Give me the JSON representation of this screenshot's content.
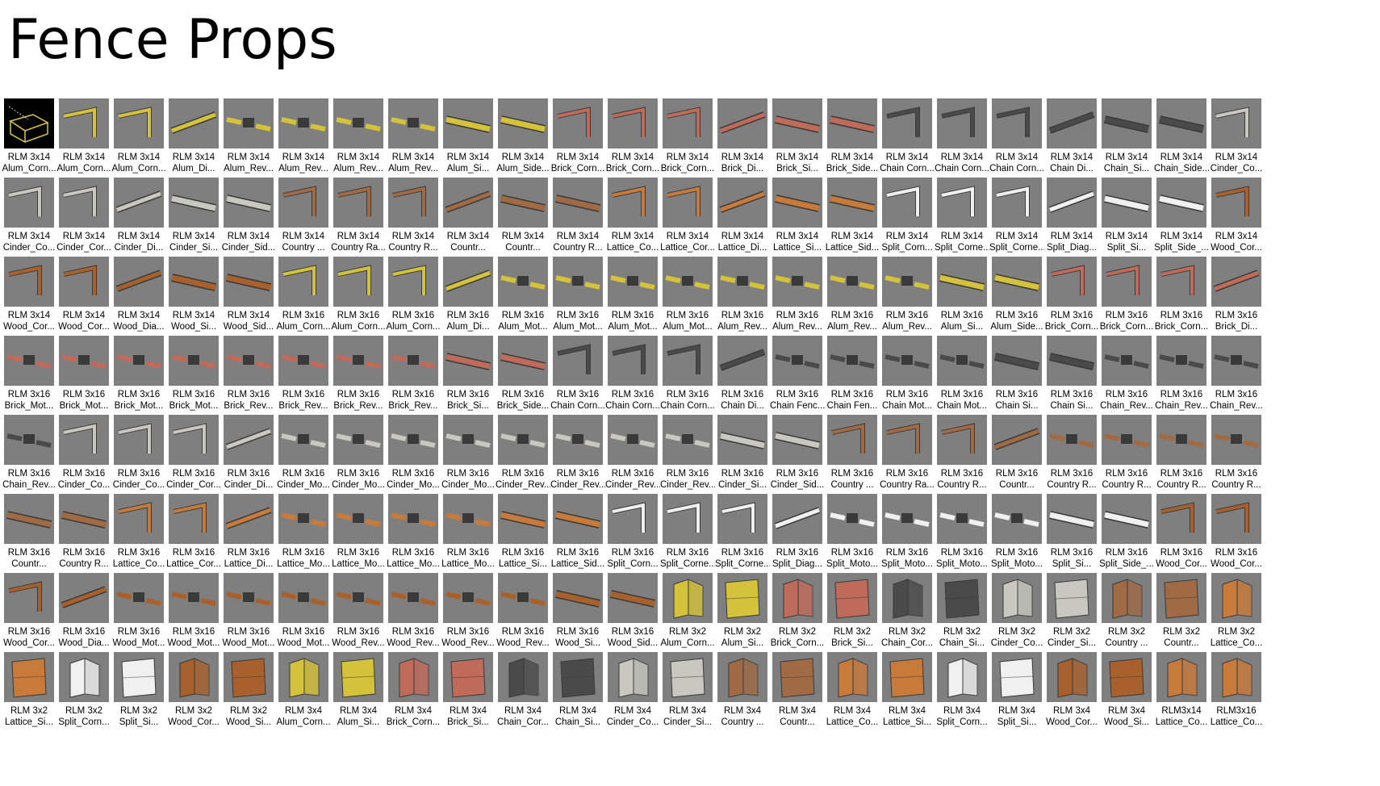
{
  "title": "Fence Props",
  "colors": {
    "background": "#ffffff",
    "thumbnail": "#7f7f7f",
    "alum": "#d4c23a",
    "brick": "#c06a5a",
    "chain": "#4a4a4a",
    "cinder": "#c8c8c0",
    "country": "#a06a45",
    "lattice": "#c87a3a",
    "split": "#f0f0f0",
    "wood": "#a8612c"
  },
  "items": [
    {
      "l1": "RLM 3x14",
      "l2": "Alum_Corn...",
      "icon": "selected-frame-icon"
    },
    {
      "l1": "RLM 3x14",
      "l2": "Alum_Corn...",
      "icon": "corner-fence-icon"
    },
    {
      "l1": "RLM 3x14",
      "l2": "Alum_Corn...",
      "icon": "corner-fence-icon"
    },
    {
      "l1": "RLM 3x14",
      "l2": "Alum_Di...",
      "icon": "diagonal-fence-icon"
    },
    {
      "l1": "RLM 3x14",
      "l2": "Alum_Rev...",
      "icon": "gate-fence-icon"
    },
    {
      "l1": "RLM 3x14",
      "l2": "Alum_Rev...",
      "icon": "gate-fence-icon"
    },
    {
      "l1": "RLM 3x14",
      "l2": "Alum_Rev...",
      "icon": "gate-fence-icon"
    },
    {
      "l1": "RLM 3x14",
      "l2": "Alum_Rev...",
      "icon": "gate-fence-icon"
    },
    {
      "l1": "RLM 3x14",
      "l2": "Alum_Si...",
      "icon": "side-fence-icon"
    },
    {
      "l1": "RLM 3x14",
      "l2": "Alum_Side...",
      "icon": "side-fence-icon"
    },
    {
      "l1": "RLM 3x14",
      "l2": "Brick_Corn...",
      "icon": "corner-fence-icon"
    },
    {
      "l1": "RLM 3x14",
      "l2": "Brick_Corn...",
      "icon": "corner-fence-icon"
    },
    {
      "l1": "RLM 3x14",
      "l2": "Brick_Corn...",
      "icon": "corner-fence-icon"
    },
    {
      "l1": "RLM 3x14",
      "l2": "Brick_Di...",
      "icon": "diagonal-fence-icon"
    },
    {
      "l1": "RLM 3x14",
      "l2": "Brick_Si...",
      "icon": "side-fence-icon"
    },
    {
      "l1": "RLM 3x14",
      "l2": "Brick_Side...",
      "icon": "side-fence-icon"
    },
    {
      "l1": "RLM 3x14",
      "l2": "Chain Corn...",
      "icon": "corner-fence-icon"
    },
    {
      "l1": "RLM 3x14",
      "l2": "Chain Corn...",
      "icon": "corner-fence-icon"
    },
    {
      "l1": "RLM 3x14",
      "l2": "Chain Corn...",
      "icon": "corner-fence-icon"
    },
    {
      "l1": "RLM 3x14",
      "l2": "Chain Di...",
      "icon": "diagonal-fence-icon"
    },
    {
      "l1": "RLM 3x14",
      "l2": "Chain_Si...",
      "icon": "side-fence-icon"
    },
    {
      "l1": "RLM 3x14",
      "l2": "Chain_Side...",
      "icon": "side-fence-icon"
    },
    {
      "l1": "RLM 3x14",
      "l2": "Cinder_Co...",
      "icon": "corner-fence-icon"
    },
    {
      "l1": "RLM 3x14",
      "l2": "Cinder_Co...",
      "icon": "corner-fence-icon"
    },
    {
      "l1": "RLM 3x14",
      "l2": "Cinder_Cor...",
      "icon": "corner-fence-icon"
    },
    {
      "l1": "RLM 3x14",
      "l2": "Cinder_Di...",
      "icon": "diagonal-fence-icon"
    },
    {
      "l1": "RLM 3x14",
      "l2": "Cinder_Si...",
      "icon": "side-fence-icon"
    },
    {
      "l1": "RLM 3x14",
      "l2": "Cinder_Sid...",
      "icon": "side-fence-icon"
    },
    {
      "l1": "RLM 3x14",
      "l2": "Country ...",
      "icon": "corner-fence-icon"
    },
    {
      "l1": "RLM 3x14",
      "l2": "Country Ra...",
      "icon": "corner-fence-icon"
    },
    {
      "l1": "RLM 3x14",
      "l2": "Country R...",
      "icon": "corner-fence-icon"
    },
    {
      "l1": "RLM 3x14",
      "l2": "Countr...",
      "icon": "diagonal-fence-icon"
    },
    {
      "l1": "RLM 3x14",
      "l2": "Countr...",
      "icon": "side-fence-icon"
    },
    {
      "l1": "RLM 3x14",
      "l2": "Country R...",
      "icon": "side-fence-icon"
    },
    {
      "l1": "RLM 3x14",
      "l2": "Lattice_Co...",
      "icon": "corner-fence-icon"
    },
    {
      "l1": "RLM 3x14",
      "l2": "Lattice_Cor...",
      "icon": "corner-fence-icon"
    },
    {
      "l1": "RLM 3x14",
      "l2": "Lattice_Di...",
      "icon": "diagonal-fence-icon"
    },
    {
      "l1": "RLM 3x14",
      "l2": "Lattice_Si...",
      "icon": "side-fence-icon"
    },
    {
      "l1": "RLM 3x14",
      "l2": "Lattice_Sid...",
      "icon": "side-fence-icon"
    },
    {
      "l1": "RLM 3x14",
      "l2": "Split_Corn...",
      "icon": "corner-fence-icon"
    },
    {
      "l1": "RLM 3x14",
      "l2": "Split_Corne...",
      "icon": "corner-fence-icon"
    },
    {
      "l1": "RLM 3x14",
      "l2": "Split_Corne...",
      "icon": "corner-fence-icon"
    },
    {
      "l1": "RLM 3x14",
      "l2": "Split_Diag...",
      "icon": "diagonal-fence-icon"
    },
    {
      "l1": "RLM 3x14",
      "l2": "Split_Si...",
      "icon": "side-fence-icon"
    },
    {
      "l1": "RLM 3x14",
      "l2": "Split_Side_...",
      "icon": "side-fence-icon"
    },
    {
      "l1": "RLM 3x14",
      "l2": "Wood_Cor...",
      "icon": "corner-fence-icon"
    },
    {
      "l1": "RLM 3x14",
      "l2": "Wood_Cor...",
      "icon": "corner-fence-icon"
    },
    {
      "l1": "RLM 3x14",
      "l2": "Wood_Cor...",
      "icon": "corner-fence-icon"
    },
    {
      "l1": "RLM 3x14",
      "l2": "Wood_Dia...",
      "icon": "diagonal-fence-icon"
    },
    {
      "l1": "RLM 3x14",
      "l2": "Wood_Si...",
      "icon": "side-fence-icon"
    },
    {
      "l1": "RLM 3x14",
      "l2": "Wood_Sid...",
      "icon": "side-fence-icon"
    },
    {
      "l1": "RLM 3x16",
      "l2": "Alum_Corn...",
      "icon": "corner-fence-icon"
    },
    {
      "l1": "RLM 3x16",
      "l2": "Alum_Corn...",
      "icon": "corner-fence-icon"
    },
    {
      "l1": "RLM 3x16",
      "l2": "Alum_Corn...",
      "icon": "corner-fence-icon"
    },
    {
      "l1": "RLM 3x16",
      "l2": "Alum_Di...",
      "icon": "diagonal-fence-icon"
    },
    {
      "l1": "RLM 3x16",
      "l2": "Alum_Mot...",
      "icon": "gate-fence-icon"
    },
    {
      "l1": "RLM 3x16",
      "l2": "Alum_Mot...",
      "icon": "gate-fence-icon"
    },
    {
      "l1": "RLM 3x16",
      "l2": "Alum_Mot...",
      "icon": "gate-fence-icon"
    },
    {
      "l1": "RLM 3x16",
      "l2": "Alum_Mot...",
      "icon": "gate-fence-icon"
    },
    {
      "l1": "RLM 3x16",
      "l2": "Alum_Rev...",
      "icon": "gate-fence-icon"
    },
    {
      "l1": "RLM 3x16",
      "l2": "Alum_Rev...",
      "icon": "gate-fence-icon"
    },
    {
      "l1": "RLM 3x16",
      "l2": "Alum_Rev...",
      "icon": "gate-fence-icon"
    },
    {
      "l1": "RLM 3x16",
      "l2": "Alum_Rev...",
      "icon": "gate-fence-icon"
    },
    {
      "l1": "RLM 3x16",
      "l2": "Alum_Si...",
      "icon": "side-fence-icon"
    },
    {
      "l1": "RLM 3x16",
      "l2": "Alum_Side...",
      "icon": "side-fence-icon"
    },
    {
      "l1": "RLM 3x16",
      "l2": "Brick_Corn...",
      "icon": "corner-fence-icon"
    },
    {
      "l1": "RLM 3x16",
      "l2": "Brick_Corn...",
      "icon": "corner-fence-icon"
    },
    {
      "l1": "RLM 3x16",
      "l2": "Brick_Corn...",
      "icon": "corner-fence-icon"
    },
    {
      "l1": "RLM 3x16",
      "l2": "Brick_Di...",
      "icon": "diagonal-fence-icon"
    },
    {
      "l1": "RLM 3x16",
      "l2": "Brick_Mot...",
      "icon": "gate-fence-icon"
    },
    {
      "l1": "RLM 3x16",
      "l2": "Brick_Mot...",
      "icon": "gate-fence-icon"
    },
    {
      "l1": "RLM 3x16",
      "l2": "Brick_Mot...",
      "icon": "gate-fence-icon"
    },
    {
      "l1": "RLM 3x16",
      "l2": "Brick_Mot...",
      "icon": "gate-fence-icon"
    },
    {
      "l1": "RLM 3x16",
      "l2": "Brick_Rev...",
      "icon": "gate-fence-icon"
    },
    {
      "l1": "RLM 3x16",
      "l2": "Brick_Rev...",
      "icon": "gate-fence-icon"
    },
    {
      "l1": "RLM 3x16",
      "l2": "Brick_Rev...",
      "icon": "gate-fence-icon"
    },
    {
      "l1": "RLM 3x16",
      "l2": "Brick_Rev...",
      "icon": "gate-fence-icon"
    },
    {
      "l1": "RLM 3x16",
      "l2": "Brick_Si...",
      "icon": "side-fence-icon"
    },
    {
      "l1": "RLM 3x16",
      "l2": "Brick_Side...",
      "icon": "side-fence-icon"
    },
    {
      "l1": "RLM 3x16",
      "l2": "Chain Corn...",
      "icon": "corner-fence-icon"
    },
    {
      "l1": "RLM 3x16",
      "l2": "Chain Corn...",
      "icon": "corner-fence-icon"
    },
    {
      "l1": "RLM 3x16",
      "l2": "Chain Corn...",
      "icon": "corner-fence-icon"
    },
    {
      "l1": "RLM 3x16",
      "l2": "Chain Di...",
      "icon": "diagonal-fence-icon"
    },
    {
      "l1": "RLM 3x16",
      "l2": "Chain Fenc...",
      "icon": "gate-fence-icon"
    },
    {
      "l1": "RLM 3x16",
      "l2": "Chain Fen...",
      "icon": "gate-fence-icon"
    },
    {
      "l1": "RLM 3x16",
      "l2": "Chain Mot...",
      "icon": "gate-fence-icon"
    },
    {
      "l1": "RLM 3x16",
      "l2": "Chain Mot...",
      "icon": "gate-fence-icon"
    },
    {
      "l1": "RLM 3x16",
      "l2": "Chain Si...",
      "icon": "side-fence-icon"
    },
    {
      "l1": "RLM 3x16",
      "l2": "Chain Si...",
      "icon": "side-fence-icon"
    },
    {
      "l1": "RLM 3x16",
      "l2": "Chain_Rev...",
      "icon": "gate-fence-icon"
    },
    {
      "l1": "RLM 3x16",
      "l2": "Chain_Rev...",
      "icon": "gate-fence-icon"
    },
    {
      "l1": "RLM 3x16",
      "l2": "Chain_Rev...",
      "icon": "gate-fence-icon"
    },
    {
      "l1": "RLM 3x16",
      "l2": "Chain_Rev...",
      "icon": "gate-fence-icon"
    },
    {
      "l1": "RLM 3x16",
      "l2": "Cinder_Co...",
      "icon": "corner-fence-icon"
    },
    {
      "l1": "RLM 3x16",
      "l2": "Cinder_Co...",
      "icon": "corner-fence-icon"
    },
    {
      "l1": "RLM 3x16",
      "l2": "Cinder_Cor...",
      "icon": "corner-fence-icon"
    },
    {
      "l1": "RLM 3x16",
      "l2": "Cinder_Di...",
      "icon": "diagonal-fence-icon"
    },
    {
      "l1": "RLM 3x16",
      "l2": "Cinder_Mo...",
      "icon": "gate-fence-icon"
    },
    {
      "l1": "RLM 3x16",
      "l2": "Cinder_Mo...",
      "icon": "gate-fence-icon"
    },
    {
      "l1": "RLM 3x16",
      "l2": "Cinder_Mo...",
      "icon": "gate-fence-icon"
    },
    {
      "l1": "RLM 3x16",
      "l2": "Cinder_Mo...",
      "icon": "gate-fence-icon"
    },
    {
      "l1": "RLM 3x16",
      "l2": "Cinder_Rev...",
      "icon": "gate-fence-icon"
    },
    {
      "l1": "RLM 3x16",
      "l2": "Cinder_Rev...",
      "icon": "gate-fence-icon"
    },
    {
      "l1": "RLM 3x16",
      "l2": "Cinder_Rev...",
      "icon": "gate-fence-icon"
    },
    {
      "l1": "RLM 3x16",
      "l2": "Cinder_Rev...",
      "icon": "gate-fence-icon"
    },
    {
      "l1": "RLM 3x16",
      "l2": "Cinder_Si...",
      "icon": "side-fence-icon"
    },
    {
      "l1": "RLM 3x16",
      "l2": "Cinder_Sid...",
      "icon": "side-fence-icon"
    },
    {
      "l1": "RLM 3x16",
      "l2": "Country ...",
      "icon": "corner-fence-icon"
    },
    {
      "l1": "RLM 3x16",
      "l2": "Country Ra...",
      "icon": "corner-fence-icon"
    },
    {
      "l1": "RLM 3x16",
      "l2": "Country R...",
      "icon": "corner-fence-icon"
    },
    {
      "l1": "RLM 3x16",
      "l2": "Countr...",
      "icon": "diagonal-fence-icon"
    },
    {
      "l1": "RLM 3x16",
      "l2": "Country R...",
      "icon": "gate-fence-icon"
    },
    {
      "l1": "RLM 3x16",
      "l2": "Country R...",
      "icon": "gate-fence-icon"
    },
    {
      "l1": "RLM 3x16",
      "l2": "Country R...",
      "icon": "gate-fence-icon"
    },
    {
      "l1": "RLM 3x16",
      "l2": "Country R...",
      "icon": "gate-fence-icon"
    },
    {
      "l1": "RLM 3x16",
      "l2": "Countr...",
      "icon": "side-fence-icon"
    },
    {
      "l1": "RLM 3x16",
      "l2": "Country R...",
      "icon": "side-fence-icon"
    },
    {
      "l1": "RLM 3x16",
      "l2": "Lattice_Co...",
      "icon": "corner-fence-icon"
    },
    {
      "l1": "RLM 3x16",
      "l2": "Lattice_Cor...",
      "icon": "corner-fence-icon"
    },
    {
      "l1": "RLM 3x16",
      "l2": "Lattice_Di...",
      "icon": "diagonal-fence-icon"
    },
    {
      "l1": "RLM 3x16",
      "l2": "Lattice_Mo...",
      "icon": "gate-fence-icon"
    },
    {
      "l1": "RLM 3x16",
      "l2": "Lattice_Mo...",
      "icon": "gate-fence-icon"
    },
    {
      "l1": "RLM 3x16",
      "l2": "Lattice_Mo...",
      "icon": "gate-fence-icon"
    },
    {
      "l1": "RLM 3x16",
      "l2": "Lattice_Mo...",
      "icon": "gate-fence-icon"
    },
    {
      "l1": "RLM 3x16",
      "l2": "Lattice_Si...",
      "icon": "side-fence-icon"
    },
    {
      "l1": "RLM 3x16",
      "l2": "Lattice_Sid...",
      "icon": "side-fence-icon"
    },
    {
      "l1": "RLM 3x16",
      "l2": "Split_Corn...",
      "icon": "corner-fence-icon"
    },
    {
      "l1": "RLM 3x16",
      "l2": "Split_Corne...",
      "icon": "corner-fence-icon"
    },
    {
      "l1": "RLM 3x16",
      "l2": "Split_Corne...",
      "icon": "corner-fence-icon"
    },
    {
      "l1": "RLM 3x16",
      "l2": "Split_Diag...",
      "icon": "diagonal-fence-icon"
    },
    {
      "l1": "RLM 3x16",
      "l2": "Split_Moto...",
      "icon": "gate-fence-icon"
    },
    {
      "l1": "RLM 3x16",
      "l2": "Split_Moto...",
      "icon": "gate-fence-icon"
    },
    {
      "l1": "RLM 3x16",
      "l2": "Split_Moto...",
      "icon": "gate-fence-icon"
    },
    {
      "l1": "RLM 3x16",
      "l2": "Split_Moto...",
      "icon": "gate-fence-icon"
    },
    {
      "l1": "RLM 3x16",
      "l2": "Split_Si...",
      "icon": "side-fence-icon"
    },
    {
      "l1": "RLM 3x16",
      "l2": "Split_Side_...",
      "icon": "side-fence-icon"
    },
    {
      "l1": "RLM 3x16",
      "l2": "Wood_Cor...",
      "icon": "corner-fence-icon"
    },
    {
      "l1": "RLM 3x16",
      "l2": "Wood_Cor...",
      "icon": "corner-fence-icon"
    },
    {
      "l1": "RLM 3x16",
      "l2": "Wood_Cor...",
      "icon": "corner-fence-icon"
    },
    {
      "l1": "RLM 3x16",
      "l2": "Wood_Dia...",
      "icon": "diagonal-fence-icon"
    },
    {
      "l1": "RLM 3x16",
      "l2": "Wood_Mot...",
      "icon": "gate-fence-icon"
    },
    {
      "l1": "RLM 3x16",
      "l2": "Wood_Mot...",
      "icon": "gate-fence-icon"
    },
    {
      "l1": "RLM 3x16",
      "l2": "Wood_Mot...",
      "icon": "gate-fence-icon"
    },
    {
      "l1": "RLM 3x16",
      "l2": "Wood_Mot...",
      "icon": "gate-fence-icon"
    },
    {
      "l1": "RLM 3x16",
      "l2": "Wood_Rev...",
      "icon": "gate-fence-icon"
    },
    {
      "l1": "RLM 3x16",
      "l2": "Wood_Rev...",
      "icon": "gate-fence-icon"
    },
    {
      "l1": "RLM 3x16",
      "l2": "Wood_Rev...",
      "icon": "gate-fence-icon"
    },
    {
      "l1": "RLM 3x16",
      "l2": "Wood_Rev...",
      "icon": "gate-fence-icon"
    },
    {
      "l1": "RLM 3x16",
      "l2": "Wood_Si...",
      "icon": "side-fence-icon"
    },
    {
      "l1": "RLM 3x16",
      "l2": "Wood_Sid...",
      "icon": "side-fence-icon"
    },
    {
      "l1": "RLM 3x2",
      "l2": "Alum_Corn...",
      "icon": "post-corner-icon"
    },
    {
      "l1": "RLM 3x2",
      "l2": "Alum_Si...",
      "icon": "post-side-icon"
    },
    {
      "l1": "RLM 3x2",
      "l2": "Brick_Corn...",
      "icon": "post-corner-icon"
    },
    {
      "l1": "RLM 3x2",
      "l2": "Brick_Si...",
      "icon": "post-side-icon"
    },
    {
      "l1": "RLM 3x2",
      "l2": "Chain_Cor...",
      "icon": "post-corner-icon"
    },
    {
      "l1": "RLM 3x2",
      "l2": "Chain_Si...",
      "icon": "post-side-icon"
    },
    {
      "l1": "RLM 3x2",
      "l2": "Cinder_Co...",
      "icon": "post-corner-icon"
    },
    {
      "l1": "RLM 3x2",
      "l2": "Cinder_Si...",
      "icon": "post-side-icon"
    },
    {
      "l1": "RLM 3x2",
      "l2": "Country ...",
      "icon": "post-corner-icon"
    },
    {
      "l1": "RLM 3x2",
      "l2": "Countr...",
      "icon": "post-side-icon"
    },
    {
      "l1": "RLM 3x2",
      "l2": "Lattice_Co...",
      "icon": "post-corner-icon"
    },
    {
      "l1": "RLM 3x2",
      "l2": "Lattice_Si...",
      "icon": "post-side-icon"
    },
    {
      "l1": "RLM 3x2",
      "l2": "Split_Corn...",
      "icon": "post-corner-icon"
    },
    {
      "l1": "RLM 3x2",
      "l2": "Split_Si...",
      "icon": "post-side-icon"
    },
    {
      "l1": "RLM 3x2",
      "l2": "Wood_Cor...",
      "icon": "post-corner-icon"
    },
    {
      "l1": "RLM 3x2",
      "l2": "Wood_Si...",
      "icon": "post-side-icon"
    },
    {
      "l1": "RLM 3x4",
      "l2": "Alum_Corn...",
      "icon": "post-corner-icon"
    },
    {
      "l1": "RLM 3x4",
      "l2": "Alum_Si...",
      "icon": "post-side-icon"
    },
    {
      "l1": "RLM 3x4",
      "l2": "Brick_Corn...",
      "icon": "post-corner-icon"
    },
    {
      "l1": "RLM 3x4",
      "l2": "Brick_Si...",
      "icon": "post-side-icon"
    },
    {
      "l1": "RLM 3x4",
      "l2": "Chain_Cor...",
      "icon": "post-corner-icon"
    },
    {
      "l1": "RLM 3x4",
      "l2": "Chain_Si...",
      "icon": "post-side-icon"
    },
    {
      "l1": "RLM 3x4",
      "l2": "Cinder_Co...",
      "icon": "post-corner-icon"
    },
    {
      "l1": "RLM 3x4",
      "l2": "Cinder_Si...",
      "icon": "post-side-icon"
    },
    {
      "l1": "RLM 3x4",
      "l2": "Country ...",
      "icon": "post-corner-icon"
    },
    {
      "l1": "RLM 3x4",
      "l2": "Countr...",
      "icon": "post-side-icon"
    },
    {
      "l1": "RLM 3x4",
      "l2": "Lattice_Co...",
      "icon": "post-corner-icon"
    },
    {
      "l1": "RLM 3x4",
      "l2": "Lattice_Si...",
      "icon": "post-side-icon"
    },
    {
      "l1": "RLM 3x4",
      "l2": "Split_Corn...",
      "icon": "post-corner-icon"
    },
    {
      "l1": "RLM 3x4",
      "l2": "Split_Si...",
      "icon": "post-side-icon"
    },
    {
      "l1": "RLM 3x4",
      "l2": "Wood_Cor...",
      "icon": "post-corner-icon"
    },
    {
      "l1": "RLM 3x4",
      "l2": "Wood_Si...",
      "icon": "post-side-icon"
    },
    {
      "l1": "RLM3x14",
      "l2": "Lattice_Co...",
      "icon": "post-corner-icon"
    },
    {
      "l1": "RLM3x16",
      "l2": "Lattice_Co...",
      "icon": "post-corner-icon"
    }
  ]
}
